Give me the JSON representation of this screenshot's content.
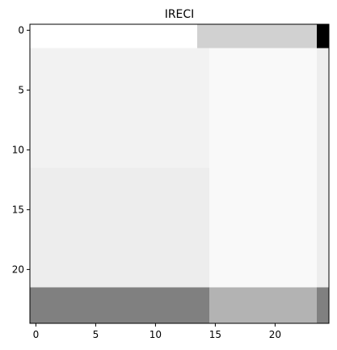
{
  "chart_data": {
    "type": "heatmap",
    "title": "IRECI",
    "xlabel": "",
    "ylabel": "",
    "colormap": "gray",
    "x_ticks": [
      0,
      5,
      10,
      15,
      20
    ],
    "y_ticks": [
      0,
      5,
      10,
      15,
      20
    ],
    "x_range": [
      -0.5,
      24.5
    ],
    "y_range": [
      -0.5,
      24.5
    ],
    "grid": false,
    "legend": "none",
    "rows": [
      {
        "y0": 0,
        "y1": 1,
        "cells": [
          {
            "x0": 0,
            "x1": 13,
            "value": 1.0
          },
          {
            "x0": 14,
            "x1": 23,
            "value": 0.82
          },
          {
            "x0": 24,
            "x1": 24,
            "value": 0.0
          }
        ]
      },
      {
        "y0": 2,
        "y1": 11,
        "cells": [
          {
            "x0": 0,
            "x1": 14,
            "value": 0.95
          },
          {
            "x0": 15,
            "x1": 23,
            "value": 0.975
          },
          {
            "x0": 24,
            "x1": 24,
            "value": 0.93
          }
        ]
      },
      {
        "y0": 12,
        "y1": 21,
        "cells": [
          {
            "x0": 0,
            "x1": 14,
            "value": 0.93
          },
          {
            "x0": 15,
            "x1": 23,
            "value": 0.975
          },
          {
            "x0": 24,
            "x1": 24,
            "value": 0.93
          }
        ]
      },
      {
        "y0": 22,
        "y1": 24,
        "cells": [
          {
            "x0": 0,
            "x1": 14,
            "value": 0.5
          },
          {
            "x0": 15,
            "x1": 23,
            "value": 0.7
          },
          {
            "x0": 24,
            "x1": 24,
            "value": 0.5
          }
        ]
      }
    ]
  }
}
